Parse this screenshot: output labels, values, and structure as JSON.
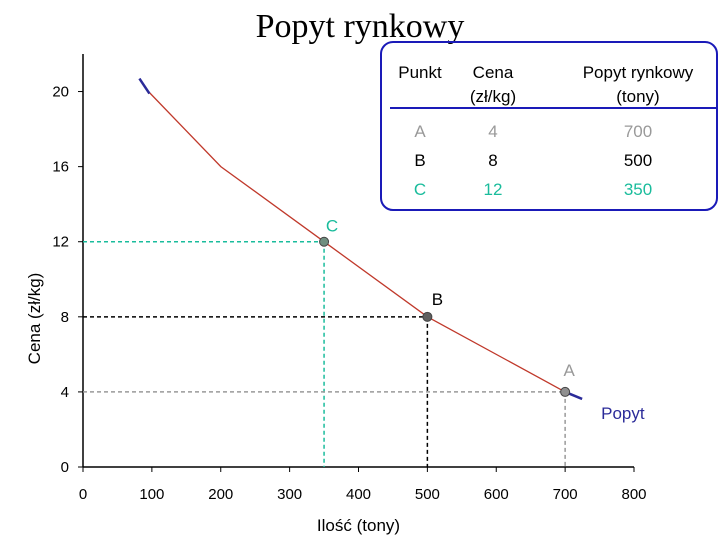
{
  "chart_data": {
    "type": "line",
    "title": "Popyt rynkowy",
    "xlabel": "Ilość (tony)",
    "ylabel": "Cena (zł/kg)",
    "xlim": [
      0,
      800
    ],
    "ylim": [
      0,
      22
    ],
    "x_ticks": [
      0,
      100,
      200,
      300,
      400,
      500,
      600,
      700,
      800
    ],
    "y_ticks": [
      0,
      4,
      8,
      12,
      16,
      20
    ],
    "grid": false,
    "series": [
      {
        "name": "Popyt",
        "color": "#c0392b",
        "x": [
          95,
          200,
          350,
          500,
          700
        ],
        "y": [
          20,
          16,
          12,
          8,
          4
        ]
      }
    ],
    "points": [
      {
        "label": "C",
        "x": 350,
        "y": 12,
        "color": "#1abc9c",
        "marker": "#6f8f80"
      },
      {
        "label": "B",
        "x": 500,
        "y": 8,
        "color": "#000000",
        "marker": "#606060"
      },
      {
        "label": "A",
        "x": 700,
        "y": 4,
        "color": "#999999",
        "marker": "#909090"
      }
    ],
    "curve_label": "Popyt",
    "curve_label_color": "#2b2b99",
    "table": {
      "headers": [
        "Punkt",
        "Cena\n(zł/kg)",
        "Popyt rynkowy\n(tony)"
      ],
      "rows": [
        {
          "cells": [
            "A",
            "4",
            "700"
          ],
          "color": "#999999"
        },
        {
          "cells": [
            "B",
            "8",
            "500"
          ],
          "color": "#000000"
        },
        {
          "cells": [
            "C",
            "12",
            "350"
          ],
          "color": "#1abc9c"
        }
      ],
      "border_color": "#1a1ab8"
    }
  }
}
